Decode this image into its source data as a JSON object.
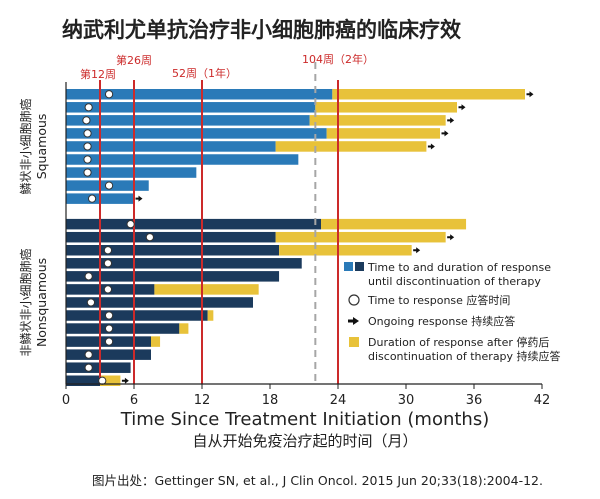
{
  "title": "纳武利尤单抗治疗非小细胞肺癌的临床疗效",
  "citation": "图片出处：Gettinger SN, et al., J Clin Oncol. 2015 Jun 20;33(18):2004-12.",
  "colors": {
    "squamous_bar": "#2a7ab8",
    "nonsquamous_bar": "#1b3a5c",
    "post_discontinuation": "#e8c23a",
    "reference_line": "#cc2a2a",
    "dashed_line": "#a6a6a6",
    "arrow": "#111111",
    "text": "#222222"
  },
  "chart_data": {
    "type": "bar",
    "orientation": "horizontal",
    "xlabel": "Time Since Treatment Initiation (months)",
    "xlabel_cn": "自从开始免疫治疗起的时间（月）",
    "xlim": [
      0,
      42
    ],
    "xticks": [
      0,
      6,
      12,
      18,
      24,
      30,
      36,
      42
    ],
    "reference_lines": [
      {
        "x": 3,
        "label": "第12周"
      },
      {
        "x": 6,
        "label": "第26周"
      },
      {
        "x": 12,
        "label": "52周（1年）"
      },
      {
        "x": 24,
        "label": "104周（2年）"
      }
    ],
    "dashed_line": {
      "x": 22
    },
    "groups": [
      {
        "label_cn": "鳞状非小细胞肺癌",
        "label_en": "Squamous",
        "patients": [
          {
            "until_discontinuation": 23.5,
            "after_discontinuation": 40.5,
            "time_to_response": 3.8,
            "ongoing": true
          },
          {
            "until_discontinuation": 22.0,
            "after_discontinuation": 34.5,
            "time_to_response": 2.0,
            "ongoing": true
          },
          {
            "until_discontinuation": 21.5,
            "after_discontinuation": 33.5,
            "time_to_response": 1.8,
            "ongoing": true
          },
          {
            "until_discontinuation": 23.0,
            "after_discontinuation": 33.0,
            "time_to_response": 1.9,
            "ongoing": true
          },
          {
            "until_discontinuation": 18.5,
            "after_discontinuation": 31.8,
            "time_to_response": 1.9,
            "ongoing": true
          },
          {
            "until_discontinuation": 20.5,
            "after_discontinuation": null,
            "time_to_response": 1.9,
            "ongoing": false
          },
          {
            "until_discontinuation": 11.5,
            "after_discontinuation": null,
            "time_to_response": 1.9,
            "ongoing": false
          },
          {
            "until_discontinuation": 7.3,
            "after_discontinuation": null,
            "time_to_response": 3.8,
            "ongoing": false
          },
          {
            "until_discontinuation": 6.0,
            "after_discontinuation": null,
            "time_to_response": 2.3,
            "ongoing": true
          }
        ]
      },
      {
        "label_cn": "非鳞状非小细胞肺癌",
        "label_en": "Nonsquamous",
        "patients": [
          {
            "until_discontinuation": 22.5,
            "after_discontinuation": 35.3,
            "time_to_response": 5.7,
            "ongoing": false
          },
          {
            "until_discontinuation": 18.5,
            "after_discontinuation": 33.5,
            "time_to_response": 7.4,
            "ongoing": true
          },
          {
            "until_discontinuation": 18.8,
            "after_discontinuation": 30.5,
            "time_to_response": 3.7,
            "ongoing": true
          },
          {
            "until_discontinuation": 20.8,
            "after_discontinuation": null,
            "time_to_response": 3.7,
            "ongoing": false
          },
          {
            "until_discontinuation": 18.8,
            "after_discontinuation": null,
            "time_to_response": 2.0,
            "ongoing": false
          },
          {
            "until_discontinuation": 7.8,
            "after_discontinuation": 17.0,
            "time_to_response": 3.7,
            "ongoing": false
          },
          {
            "until_discontinuation": 16.5,
            "after_discontinuation": null,
            "time_to_response": 2.2,
            "ongoing": false
          },
          {
            "until_discontinuation": 12.5,
            "after_discontinuation": 13.0,
            "time_to_response": 3.8,
            "ongoing": false
          },
          {
            "until_discontinuation": 10.0,
            "after_discontinuation": 10.8,
            "time_to_response": 3.8,
            "ongoing": false
          },
          {
            "until_discontinuation": 7.5,
            "after_discontinuation": 8.3,
            "time_to_response": 3.8,
            "ongoing": false
          },
          {
            "until_discontinuation": 7.5,
            "after_discontinuation": null,
            "time_to_response": 2.0,
            "ongoing": false
          },
          {
            "until_discontinuation": 5.7,
            "after_discontinuation": null,
            "time_to_response": 2.0,
            "ongoing": false
          },
          {
            "until_discontinuation": 3.0,
            "after_discontinuation": 4.8,
            "time_to_response": 3.2,
            "ongoing": true
          }
        ]
      }
    ],
    "legend": {
      "placement": "center-right",
      "entries": [
        {
          "icon": "squares",
          "text": "Time to and duration of response\nuntil discontinuation of therapy"
        },
        {
          "icon": "circle",
          "text": "Time to response 应答时间"
        },
        {
          "icon": "arrow",
          "text": "Ongoing response 持续应答"
        },
        {
          "icon": "yellow-square",
          "text": "Duration of response after 停药后\ndiscontinuation of therapy 持续应答"
        }
      ]
    }
  }
}
